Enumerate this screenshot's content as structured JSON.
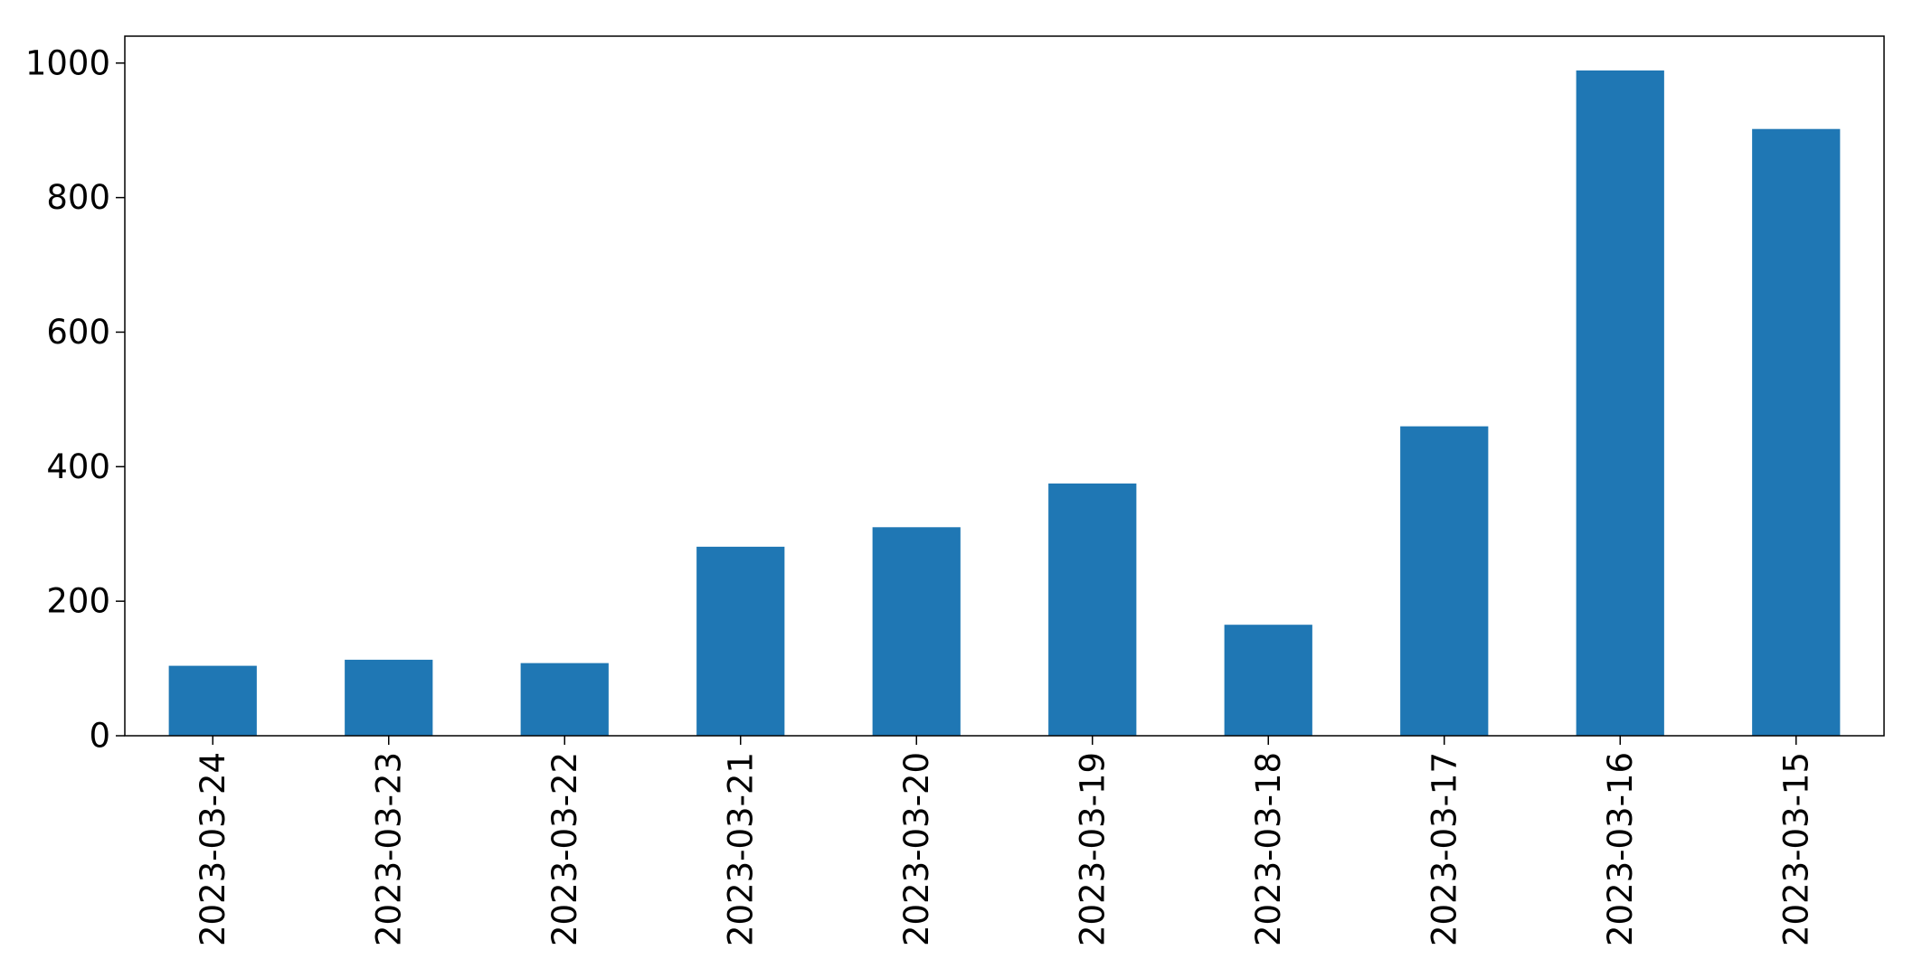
{
  "chart_data": {
    "type": "bar",
    "categories": [
      "2023-03-24",
      "2023-03-23",
      "2023-03-22",
      "2023-03-21",
      "2023-03-20",
      "2023-03-19",
      "2023-03-18",
      "2023-03-17",
      "2023-03-16",
      "2023-03-15"
    ],
    "values": [
      104,
      113,
      108,
      281,
      310,
      375,
      165,
      460,
      989,
      902
    ],
    "title": "",
    "xlabel": "",
    "ylabel": "",
    "ylim": [
      0,
      1040
    ],
    "yticks": [
      0,
      200,
      400,
      600,
      800,
      1000
    ],
    "bar_color": "#1f77b4",
    "grid": false,
    "legend": "none",
    "x_tick_rotation": "vertical"
  }
}
